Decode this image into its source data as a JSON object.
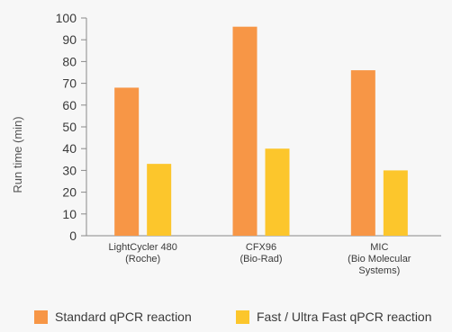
{
  "chart_data": {
    "type": "bar",
    "categories": [
      [
        "LightCycler 480",
        "(Roche)"
      ],
      [
        "CFX96",
        "(Bio-Rad)"
      ],
      [
        "MIC",
        "(Bio Molecular",
        "Systems)"
      ]
    ],
    "series": [
      {
        "name": "Standard qPCR reaction",
        "values": [
          68,
          96,
          76
        ],
        "color": "#f79646"
      },
      {
        "name": "Fast / Ultra Fast qPCR reaction",
        "values": [
          33,
          40,
          30
        ],
        "color": "#fcc62c"
      }
    ],
    "ylabel": "Run time (min)",
    "ylim": [
      0,
      100
    ],
    "yticks": [
      0,
      10,
      20,
      30,
      40,
      50,
      60,
      70,
      80,
      90,
      100
    ],
    "grid": false,
    "legend_position": "bottom"
  },
  "colors": {
    "background": "#f7f7f7",
    "axis": "#8a8a8a",
    "text": "#3a3a3a"
  }
}
